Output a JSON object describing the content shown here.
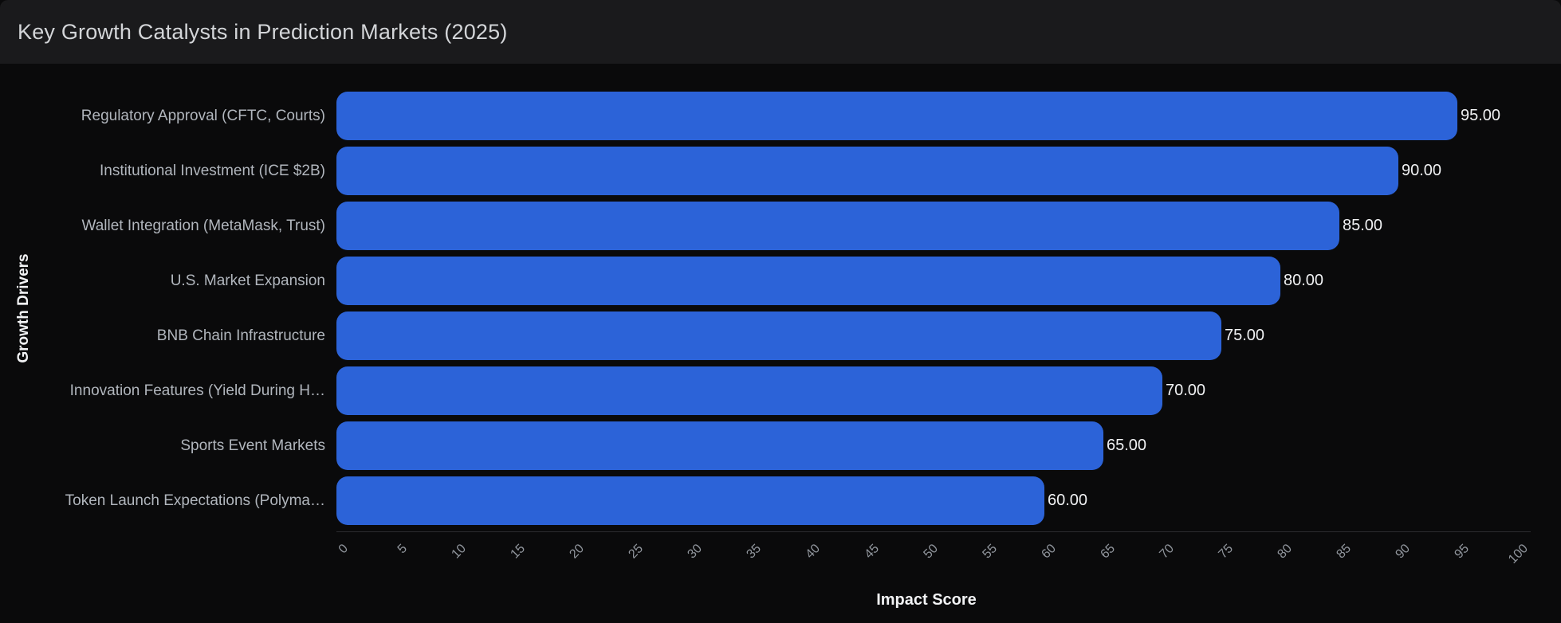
{
  "header": {
    "title": "Key Growth Catalysts in Prediction Markets (2025)"
  },
  "chart_data": {
    "type": "bar",
    "orientation": "horizontal",
    "title": "Key Growth Catalysts in Prediction Markets (2025)",
    "categories": [
      "Regulatory Approval (CFTC, Courts)",
      "Institutional Investment (ICE $2B)",
      "Wallet Integration (MetaMask, Trust)",
      "U.S. Market Expansion",
      "BNB Chain Infrastructure",
      "Innovation Features (Yield During H…",
      "Sports Event Markets",
      "Token Launch Expectations (Polyma…"
    ],
    "values": [
      95,
      90,
      85,
      80,
      75,
      70,
      65,
      60
    ],
    "value_labels": [
      "95.00",
      "90.00",
      "85.00",
      "80.00",
      "75.00",
      "70.00",
      "65.00",
      "60.00"
    ],
    "xlabel": "Impact Score",
    "ylabel": "Growth Drivers",
    "xlim": [
      0,
      100
    ],
    "xticks": [
      0,
      5,
      10,
      15,
      20,
      25,
      30,
      35,
      40,
      45,
      50,
      55,
      60,
      65,
      70,
      75,
      80,
      85,
      90,
      95,
      100
    ],
    "xtick_rotation": 45,
    "grid": false,
    "legend_position": "none",
    "bar_color": "#2c63d8"
  },
  "colors": {
    "page_bg": "#0a0a0b",
    "header_bg": "#1a1a1c",
    "bar": "#2c63d8",
    "title_text": "#d3d5d8",
    "category_text": "#b1b6bd",
    "value_text": "#f0f1f3",
    "tick_text": "#90959c",
    "axis_label_text": "#f2f3f5",
    "axis_line": "#2d2d30"
  }
}
